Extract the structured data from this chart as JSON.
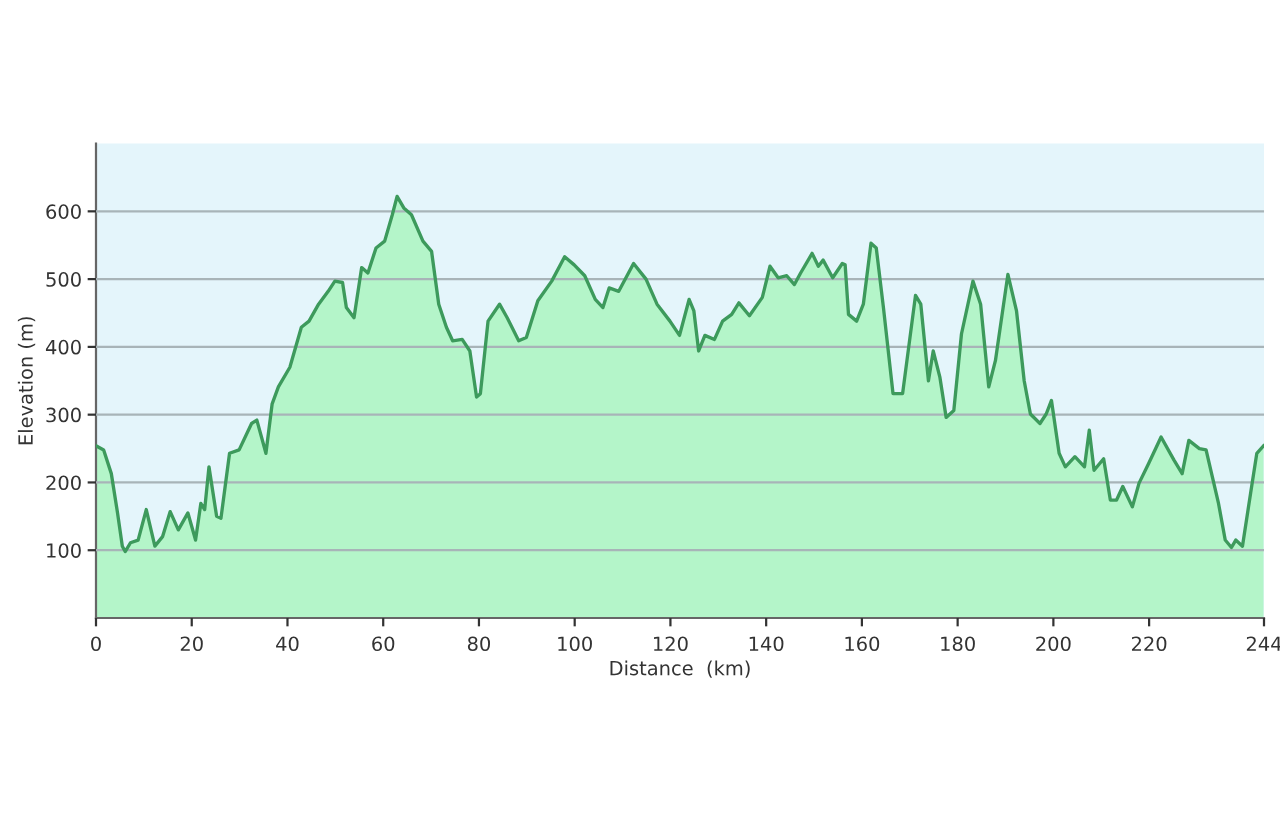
{
  "chart_data": {
    "type": "area",
    "xlabel": "Distance  (km)",
    "ylabel": "Elevation (m)",
    "x": [
      0,
      1.6,
      3.2,
      4.5,
      5.5,
      6.1,
      7.2,
      8.8,
      10.5,
      12.3,
      13.9,
      15.5,
      17.2,
      19.2,
      20.8,
      21.9,
      22.7,
      23.6,
      25.2,
      26.1,
      27.9,
      29.9,
      32.5,
      33.6,
      35.5,
      36.8,
      38.1,
      40.5,
      42.9,
      44.5,
      46.5,
      48.5,
      49.9,
      51.5,
      52.3,
      53.9,
      55.5,
      56.8,
      58.5,
      60.3,
      61.9,
      62.9,
      64.3,
      65.9,
      68.3,
      70.1,
      71.6,
      73.2,
      74.5,
      76.5,
      78.1,
      79.5,
      80.3,
      81.9,
      84.3,
      85.9,
      88.3,
      89.9,
      92.3,
      95.2,
      97.9,
      99.9,
      102.1,
      104.3,
      105.9,
      107.2,
      109.2,
      112.3,
      114.9,
      117.2,
      119.9,
      121.9,
      123.9,
      124.9,
      125.9,
      127.2,
      129.2,
      130.9,
      132.8,
      134.3,
      136.5,
      139.2,
      140.8,
      142.5,
      144.3,
      145.9,
      147.2,
      149.6,
      150.9,
      151.9,
      153.9,
      155.9,
      156.5,
      157.2,
      158.9,
      160.3,
      161.9,
      163.0,
      164.5,
      166.5,
      168.5,
      171.2,
      172.3,
      173.9,
      174.9,
      176.3,
      177.6,
      179.2,
      180.8,
      183.2,
      184.8,
      186.5,
      187.9,
      190.5,
      192.3,
      193.9,
      195.2,
      197.2,
      198.5,
      199.6,
      201.2,
      202.5,
      204.5,
      206.5,
      207.5,
      208.5,
      210.5,
      211.9,
      213.2,
      214.5,
      216.5,
      217.9,
      219.9,
      222.5,
      225.2,
      226.9,
      228.3,
      230.5,
      231.9,
      234.5,
      235.9,
      237.2,
      238.1,
      239.5,
      241.2,
      242.5,
      243.9
    ],
    "series": [
      {
        "color": "#3d9a5c",
        "values": [
          254,
          248,
          213,
          155,
          106,
          98,
          111,
          115,
          160,
          106,
          120,
          157,
          130,
          155,
          115,
          169,
          160,
          223,
          150,
          147,
          243,
          248,
          287,
          292,
          243,
          316,
          341,
          370,
          429,
          438,
          463,
          482,
          497,
          495,
          458,
          443,
          517,
          509,
          546,
          556,
          595,
          622,
          605,
          595,
          556,
          541,
          463,
          429,
          409,
          411,
          394,
          326,
          331,
          438,
          463,
          443,
          409,
          414,
          468,
          497,
          533,
          521,
          505,
          470,
          458,
          487,
          482,
          523,
          500,
          463,
          438,
          417,
          470,
          453,
          394,
          417,
          411,
          438,
          448,
          465,
          446,
          473,
          519,
          502,
          505,
          492,
          509,
          538,
          519,
          528,
          502,
          523,
          521,
          448,
          438,
          463,
          553,
          546,
          458,
          331,
          331,
          476,
          463,
          350,
          394,
          355,
          296,
          306,
          419,
          497,
          463,
          341,
          380,
          507,
          453,
          350,
          301,
          287,
          301,
          321,
          243,
          223,
          238,
          223,
          277,
          218,
          235,
          174,
          174,
          194,
          164,
          199,
          228,
          267,
          233,
          213,
          262,
          250,
          248,
          169,
          115,
          104,
          115,
          106,
          184,
          243,
          254
        ]
      }
    ],
    "xlim": [
      0,
      244
    ],
    "xticks": [
      0,
      20,
      40,
      60,
      80,
      100,
      120,
      140,
      160,
      180,
      200,
      220,
      244
    ],
    "ylim": [
      0,
      700
    ],
    "yticks": [
      100,
      200,
      300,
      400,
      500,
      600
    ],
    "grid": "y",
    "legend": false
  }
}
